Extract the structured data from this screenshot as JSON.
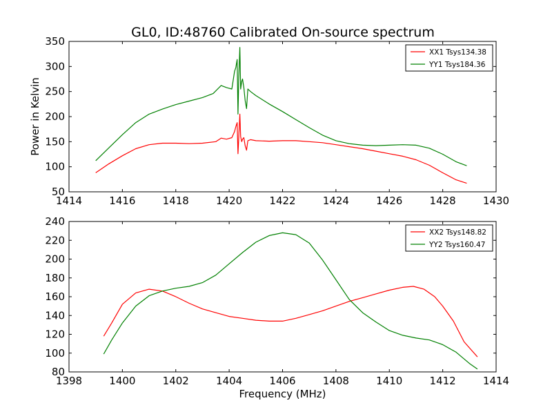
{
  "title": "GL0, ID:48760 Calibrated On-source spectrum",
  "chart_data": [
    {
      "type": "line",
      "title": "GL0, ID:48760 Calibrated On-source spectrum",
      "xlabel": "",
      "ylabel": "Power in Kelvin",
      "xlim": [
        1414,
        1430
      ],
      "ylim": [
        50,
        350
      ],
      "xticks": [
        1414,
        1416,
        1418,
        1420,
        1422,
        1424,
        1426,
        1428,
        1430
      ],
      "yticks": [
        50,
        100,
        150,
        200,
        250,
        300,
        350
      ],
      "legend_position": "top-right",
      "grid": false,
      "series": [
        {
          "name": "XX1 Tsys134.38",
          "color": "#ff0000",
          "x": [
            1415.0,
            1415.5,
            1416.0,
            1416.5,
            1417.0,
            1417.5,
            1418.0,
            1418.5,
            1419.0,
            1419.5,
            1419.7,
            1419.9,
            1420.1,
            1420.2,
            1420.25,
            1420.3,
            1420.33,
            1420.36,
            1420.4,
            1420.43,
            1420.47,
            1420.5,
            1420.55,
            1420.6,
            1420.65,
            1420.7,
            1420.8,
            1421.0,
            1421.5,
            1422.0,
            1422.5,
            1423.0,
            1423.5,
            1424.0,
            1424.5,
            1425.0,
            1425.5,
            1426.0,
            1426.5,
            1427.0,
            1427.5,
            1428.0,
            1428.5,
            1428.9
          ],
          "y": [
            88,
            106,
            122,
            136,
            144,
            147,
            147,
            146,
            147,
            150,
            157,
            155,
            158,
            170,
            180,
            188,
            126,
            160,
            205,
            160,
            150,
            155,
            158,
            142,
            133,
            152,
            154,
            152,
            151,
            152,
            152,
            150,
            148,
            144,
            140,
            136,
            131,
            126,
            121,
            114,
            103,
            88,
            74,
            67
          ]
        },
        {
          "name": "YY1 Tsys184.36",
          "color": "#008000",
          "x": [
            1415.0,
            1415.5,
            1416.0,
            1416.5,
            1417.0,
            1417.5,
            1418.0,
            1418.5,
            1419.0,
            1419.4,
            1419.7,
            1419.9,
            1420.1,
            1420.2,
            1420.25,
            1420.3,
            1420.33,
            1420.36,
            1420.4,
            1420.43,
            1420.47,
            1420.5,
            1420.55,
            1420.6,
            1420.65,
            1420.7,
            1420.8,
            1421.0,
            1421.5,
            1422.0,
            1422.5,
            1423.0,
            1423.5,
            1424.0,
            1424.5,
            1425.0,
            1425.5,
            1426.0,
            1426.5,
            1427.0,
            1427.5,
            1428.0,
            1428.5,
            1428.9
          ],
          "y": [
            112,
            138,
            164,
            188,
            205,
            215,
            224,
            231,
            238,
            246,
            262,
            258,
            255,
            290,
            298,
            314,
            205,
            280,
            338,
            255,
            270,
            275,
            258,
            232,
            216,
            255,
            250,
            242,
            225,
            210,
            194,
            178,
            163,
            152,
            146,
            143,
            142,
            143,
            144,
            143,
            137,
            125,
            110,
            102
          ]
        }
      ]
    },
    {
      "type": "line",
      "title": "",
      "xlabel": "Frequency (MHz)",
      "ylabel": "",
      "xlim": [
        1398,
        1414
      ],
      "ylim": [
        80,
        240
      ],
      "xticks": [
        1398,
        1400,
        1402,
        1404,
        1406,
        1408,
        1410,
        1412,
        1414
      ],
      "yticks": [
        80,
        100,
        120,
        140,
        160,
        180,
        200,
        220,
        240
      ],
      "legend_position": "top-right",
      "grid": false,
      "series": [
        {
          "name": "XX2 Tsys148.82",
          "color": "#ff0000",
          "x": [
            1399.3,
            1399.6,
            1400.0,
            1400.5,
            1401.0,
            1401.5,
            1402.0,
            1402.5,
            1403.0,
            1403.5,
            1404.0,
            1404.5,
            1405.0,
            1405.5,
            1406.0,
            1406.5,
            1407.0,
            1407.5,
            1408.0,
            1408.5,
            1409.0,
            1409.5,
            1410.0,
            1410.5,
            1410.9,
            1411.3,
            1411.7,
            1412.0,
            1412.4,
            1412.8,
            1413.3
          ],
          "y": [
            118,
            132,
            152,
            164,
            168,
            166,
            160,
            153,
            147,
            143,
            139,
            137,
            135,
            134,
            134,
            137,
            141,
            145,
            150,
            155,
            159,
            163,
            167,
            170,
            171,
            168,
            160,
            150,
            134,
            112,
            96
          ]
        },
        {
          "name": "YY2 Tsys160.47",
          "color": "#008000",
          "x": [
            1399.3,
            1399.6,
            1400.0,
            1400.5,
            1401.0,
            1401.5,
            1402.0,
            1402.5,
            1403.0,
            1403.5,
            1404.0,
            1404.5,
            1405.0,
            1405.5,
            1406.0,
            1406.5,
            1407.0,
            1407.5,
            1408.0,
            1408.5,
            1409.0,
            1409.5,
            1410.0,
            1410.5,
            1411.0,
            1411.5,
            1412.0,
            1412.5,
            1413.0,
            1413.3
          ],
          "y": [
            99,
            114,
            132,
            150,
            161,
            166,
            169,
            171,
            175,
            183,
            195,
            207,
            218,
            225,
            228,
            226,
            217,
            199,
            178,
            157,
            143,
            133,
            124,
            119,
            116,
            114,
            109,
            101,
            89,
            83
          ]
        }
      ]
    }
  ]
}
